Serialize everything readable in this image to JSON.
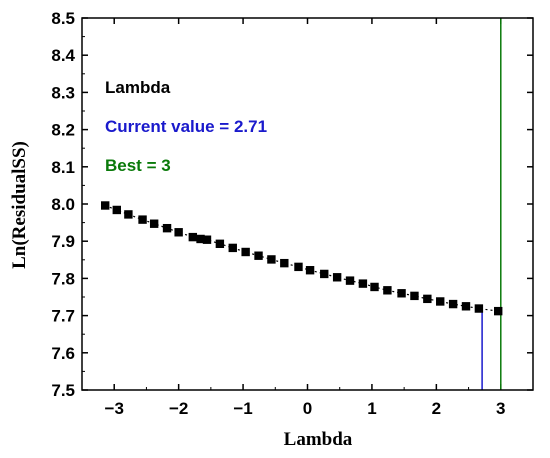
{
  "chart_data": {
    "type": "scatter",
    "xlabel": "Lambda",
    "ylabel": "Ln(ResidualSS)",
    "xlim": [
      -3.5,
      3.5
    ],
    "ylim": [
      7.5,
      8.5
    ],
    "x_ticks": [
      -3,
      -2,
      -1,
      0,
      1,
      2,
      3
    ],
    "x_tick_labels": [
      "−3",
      "−2",
      "−1",
      "0",
      "1",
      "2",
      "3"
    ],
    "y_ticks": [
      7.5,
      7.6,
      7.7,
      7.8,
      7.9,
      8.0,
      8.1,
      8.2,
      8.3,
      8.4,
      8.5
    ],
    "y_tick_labels": [
      "7.5",
      "7.6",
      "7.7",
      "7.8",
      "7.9",
      "8.0",
      "8.1",
      "8.2",
      "8.3",
      "8.4",
      "8.5"
    ],
    "grid": false,
    "points": [
      {
        "x": -3.14,
        "y": 7.996
      },
      {
        "x": -2.96,
        "y": 7.984
      },
      {
        "x": -2.78,
        "y": 7.972
      },
      {
        "x": -2.56,
        "y": 7.958
      },
      {
        "x": -2.38,
        "y": 7.947
      },
      {
        "x": -2.18,
        "y": 7.935
      },
      {
        "x": -2.0,
        "y": 7.924
      },
      {
        "x": -1.78,
        "y": 7.911
      },
      {
        "x": -1.66,
        "y": 7.906
      },
      {
        "x": -1.56,
        "y": 7.904
      },
      {
        "x": -1.36,
        "y": 7.893
      },
      {
        "x": -1.16,
        "y": 7.882
      },
      {
        "x": -0.96,
        "y": 7.871
      },
      {
        "x": -0.76,
        "y": 7.861
      },
      {
        "x": -0.56,
        "y": 7.851
      },
      {
        "x": -0.36,
        "y": 7.841
      },
      {
        "x": -0.14,
        "y": 7.831
      },
      {
        "x": 0.04,
        "y": 7.822
      },
      {
        "x": 0.26,
        "y": 7.812
      },
      {
        "x": 0.46,
        "y": 7.803
      },
      {
        "x": 0.66,
        "y": 7.794
      },
      {
        "x": 0.86,
        "y": 7.786
      },
      {
        "x": 1.04,
        "y": 7.777
      },
      {
        "x": 1.24,
        "y": 7.768
      },
      {
        "x": 1.46,
        "y": 7.76
      },
      {
        "x": 1.66,
        "y": 7.753
      },
      {
        "x": 1.86,
        "y": 7.745
      },
      {
        "x": 2.06,
        "y": 7.738
      },
      {
        "x": 2.26,
        "y": 7.731
      },
      {
        "x": 2.46,
        "y": 7.725
      },
      {
        "x": 2.66,
        "y": 7.719
      },
      {
        "x": 2.96,
        "y": 7.712
      }
    ],
    "marker_color": "#000000",
    "current_value_line": {
      "x": 2.71,
      "color": "#1a1acc"
    },
    "best_line": {
      "x": 3,
      "color": "#0a7a0a"
    },
    "annotations": {
      "label": "Lambda",
      "current": "Current value = 2.71",
      "best": "Best = 3"
    }
  }
}
